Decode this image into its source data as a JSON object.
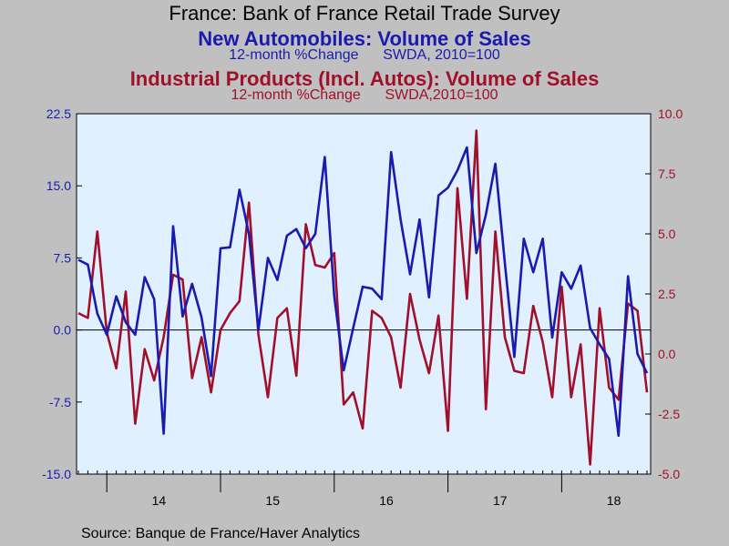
{
  "title": "France: Bank of France Retail Trade Survey",
  "subtitle1": "New Automobiles: Volume of Sales",
  "subtitle1_note": "12-month %Change      SWDA, 2010=100",
  "subtitle2": "Industrial Products (Incl. Autos): Volume of Sales",
  "subtitle2_note": "12-month %Change      SWDA,2010=100",
  "source": "Source:  Banque de France/Haver Analytics",
  "colors": {
    "blue": "#1a1aaf",
    "red": "#a0102a",
    "plot_bg": "#e0f0ff"
  },
  "chart_data": {
    "type": "line",
    "x_start": "2013-10",
    "x_end": "2018-12",
    "x_ticks": [
      "14",
      "15",
      "16",
      "17",
      "18"
    ],
    "y_left": {
      "min": -15.0,
      "max": 22.5,
      "ticks": [
        "22.5",
        "15.0",
        "7.5",
        "0.0",
        "-7.5",
        "-15.0"
      ],
      "tick_values": [
        22.5,
        15.0,
        7.5,
        0.0,
        -7.5,
        -15.0
      ]
    },
    "y_right": {
      "min": -5.0,
      "max": 10.0,
      "ticks": [
        "10.0",
        "7.5",
        "5.0",
        "2.5",
        "0.0",
        "-2.5",
        "-5.0"
      ],
      "tick_values": [
        10.0,
        7.5,
        5.0,
        2.5,
        0.0,
        -2.5,
        -5.0
      ]
    },
    "series": [
      {
        "axis": "left",
        "color": "#1a1aaf",
        "values": [
          7.3,
          6.8,
          1.7,
          -0.5,
          3.5,
          0.8,
          -0.5,
          5.5,
          3.2,
          -10.8,
          10.8,
          1.4,
          4.8,
          1.3,
          -4.8,
          8.5,
          8.6,
          14.6,
          10.0,
          0.0,
          7.5,
          5.2,
          9.8,
          10.5,
          8.5,
          10.0,
          18.0,
          3.5,
          -4.2,
          0.2,
          4.5,
          4.3,
          3.2,
          18.5,
          11.5,
          5.8,
          11.5,
          3.4,
          14.0,
          14.8,
          16.6,
          19.0,
          8.0,
          12.0,
          17.3,
          7.0,
          -2.8,
          9.5,
          6.0,
          9.5,
          -0.8,
          6.0,
          4.3,
          6.7,
          0.2,
          -1.5,
          -3.0,
          -11.0,
          5.6,
          -2.5,
          -4.5
        ]
      },
      {
        "axis": "right",
        "color": "#a0102a",
        "values": [
          1.7,
          1.5,
          5.1,
          0.9,
          -0.6,
          2.6,
          -2.9,
          0.2,
          -1.1,
          0.7,
          3.3,
          3.1,
          -1.0,
          0.7,
          -1.6,
          1.0,
          1.7,
          2.2,
          6.3,
          0.8,
          -1.8,
          1.5,
          1.9,
          -0.9,
          5.4,
          3.7,
          3.6,
          4.2,
          -2.1,
          -1.6,
          -3.1,
          1.8,
          1.5,
          0.7,
          -1.4,
          2.5,
          0.6,
          -0.8,
          1.6,
          -3.2,
          6.9,
          2.3,
          9.3,
          -2.3,
          5.1,
          0.7,
          -0.7,
          -0.8,
          2.0,
          0.5,
          -1.8,
          2.8,
          -1.8,
          0.4,
          -4.6,
          1.9,
          -1.4,
          -1.9,
          2.1,
          1.8,
          -1.6
        ]
      }
    ]
  }
}
